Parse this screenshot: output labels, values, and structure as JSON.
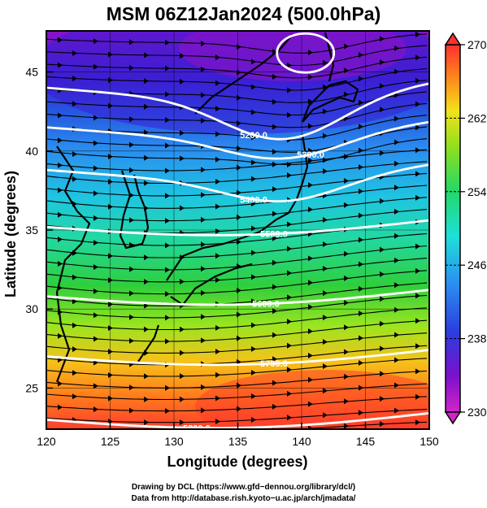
{
  "title": "MSM 06Z12Jan2024 (500.0hPa)",
  "x_axis": {
    "label": "Longitude (degrees)",
    "ticks": [
      "120",
      "125",
      "130",
      "135",
      "140",
      "145",
      "150"
    ],
    "range": [
      120,
      150
    ]
  },
  "y_axis": {
    "label": "Latitude  (degrees)",
    "ticks": [
      "25",
      "30",
      "35",
      "40",
      "45"
    ],
    "range": [
      22.4,
      47.6
    ]
  },
  "colorbar": {
    "ticks": [
      "270",
      "262",
      "254",
      "246",
      "238",
      "230"
    ],
    "range": [
      230,
      270
    ]
  },
  "contours": [
    {
      "label": "5200.0",
      "lat_west": 44.0
    },
    {
      "label": "5300.0",
      "lat_west": 41.5
    },
    {
      "label": "5400.0",
      "lat_west": 38.8
    },
    {
      "label": "5500.0",
      "lat_west": 35.2
    },
    {
      "label": "5600.0",
      "lat_west": 30.8
    },
    {
      "label": "5700.0",
      "lat_west": 27.0
    },
    {
      "label": "5800.0",
      "lat_west": 23.0
    }
  ],
  "credits": {
    "line1": "Drawing by DCL (https://www.gfd−dennou.org/library/dcl/)",
    "line2": "Data from http://database.rish.kyoto−u.ac.jp/arch/jmadata/"
  }
}
